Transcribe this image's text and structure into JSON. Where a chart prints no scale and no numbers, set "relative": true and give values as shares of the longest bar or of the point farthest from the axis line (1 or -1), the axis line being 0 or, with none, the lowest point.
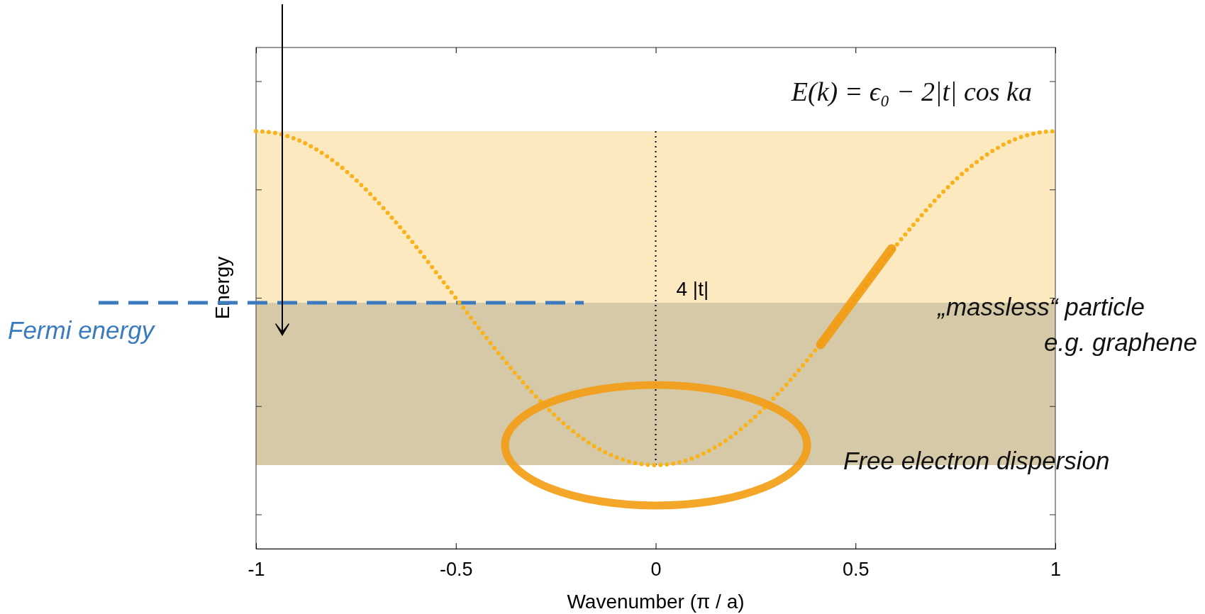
{
  "chart_data": {
    "type": "line",
    "relative": true,
    "xlabel": "Wavenumber (π / a)",
    "ylabel": "Energy",
    "xlim": [
      -1,
      1
    ],
    "xticks": [
      -1,
      -0.5,
      0,
      0.5,
      1
    ],
    "tick_labels": "x",
    "grid": false,
    "marker": "none",
    "line_style": "dotted",
    "series": [
      {
        "color": "#f9b21a",
        "x": [
          -1,
          -0.95,
          -0.9,
          -0.85,
          -0.8,
          -0.75,
          -0.7,
          -0.65,
          -0.6,
          -0.55,
          -0.5,
          -0.45,
          -0.4,
          -0.35,
          -0.3,
          -0.25,
          -0.2,
          -0.15,
          -0.1,
          -0.05,
          0,
          0.05,
          0.1,
          0.15,
          0.2,
          0.25,
          0.3,
          0.35,
          0.4,
          0.45,
          0.5,
          0.55,
          0.6,
          0.65,
          0.7,
          0.75,
          0.8,
          0.85,
          0.9,
          0.95,
          1
        ],
        "values": [
          1,
          0.994,
          0.976,
          0.946,
          0.905,
          0.854,
          0.794,
          0.727,
          0.655,
          0.578,
          0.5,
          0.422,
          0.345,
          0.273,
          0.206,
          0.146,
          0.095,
          0.054,
          0.024,
          0.006,
          0,
          0.006,
          0.024,
          0.054,
          0.095,
          0.146,
          0.206,
          0.273,
          0.345,
          0.422,
          0.5,
          0.578,
          0.655,
          0.727,
          0.794,
          0.854,
          0.905,
          0.946,
          0.976,
          0.994,
          1
        ]
      }
    ],
    "bands": [
      {
        "axis": "y",
        "from": 0.486,
        "to": 1,
        "color": "#fde9c0"
      },
      {
        "axis": "y",
        "from": 0,
        "to": 0.486,
        "color": "#d6c9a8"
      }
    ],
    "ref_lines": [
      {
        "axis": "y",
        "value": 0.486,
        "label": "Fermi energy",
        "color": "#3a7bbf",
        "line_style": "dashed"
      },
      {
        "axis": "x",
        "value": 0,
        "label": "4 |t|",
        "color": "#000000",
        "line_style": "dotted"
      }
    ],
    "annotations": [
      "E(k) = ϵ₀ − 2|t| cos ka",
      "„massless“ particle",
      "e.g. graphene",
      "Free electron dispersion"
    ]
  }
}
